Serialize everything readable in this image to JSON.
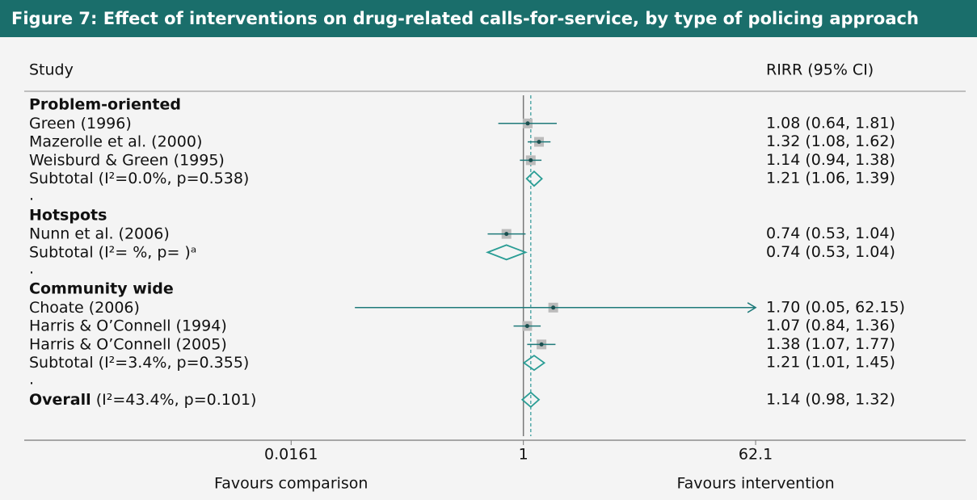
{
  "chart_data": {
    "type": "forest",
    "title": "Figure 7: Effect of interventions on drug-related calls-for-service, by type of policing approach",
    "column_headers": [
      "Study",
      "RIRR (95% CI)"
    ],
    "xlim": [
      0.00014,
      2600
    ],
    "xticks": [
      0.0161,
      1,
      62.1
    ],
    "log_x": true,
    "null_line": 1,
    "x_labels": [
      "Favours comparison",
      "Favours intervention"
    ],
    "color": "#1f7a7a",
    "rows": [
      {
        "kind": "group",
        "label": "Problem-oriented"
      },
      {
        "kind": "study",
        "label": "Green (1996)",
        "estimate": 1.08,
        "lower": 0.64,
        "upper": 1.81,
        "value_label": "1.08 (0.64, 1.81)"
      },
      {
        "kind": "study",
        "label": "Mazerolle et al. (2000)",
        "estimate": 1.32,
        "lower": 1.08,
        "upper": 1.62,
        "value_label": "1.32 (1.08, 1.62)"
      },
      {
        "kind": "study",
        "label": "Weisburd & Green (1995)",
        "estimate": 1.14,
        "lower": 0.94,
        "upper": 1.38,
        "value_label": "1.14 (0.94, 1.38)"
      },
      {
        "kind": "subtotal",
        "label": "Subtotal",
        "note": "(I²=0.0%, p=0.538)",
        "estimate": 1.21,
        "lower": 1.06,
        "upper": 1.39,
        "value_label": "1.21 (1.06, 1.39)"
      },
      {
        "kind": "spacer",
        "label": "."
      },
      {
        "kind": "group",
        "label": "Hotspots"
      },
      {
        "kind": "study",
        "label": "Nunn et al. (2006)",
        "estimate": 0.74,
        "lower": 0.53,
        "upper": 1.04,
        "value_label": "0.74 (0.53, 1.04)"
      },
      {
        "kind": "subtotal",
        "label": "Subtotal",
        "note": "(I²= %, p= )ᵃ",
        "estimate": 0.74,
        "lower": 0.53,
        "upper": 1.04,
        "value_label": "0.74 (0.53, 1.04)"
      },
      {
        "kind": "spacer",
        "label": "."
      },
      {
        "kind": "group",
        "label": "Community wide"
      },
      {
        "kind": "study",
        "label": "Choate (2006)",
        "estimate": 1.7,
        "lower": 0.05,
        "upper": 62.15,
        "value_label": "1.70 (0.05, 62.15)"
      },
      {
        "kind": "study",
        "label": "Harris & O’Connell (1994)",
        "estimate": 1.07,
        "lower": 0.84,
        "upper": 1.36,
        "value_label": "1.07 (0.84, 1.36)"
      },
      {
        "kind": "study",
        "label": "Harris & O’Connell (2005)",
        "estimate": 1.38,
        "lower": 1.07,
        "upper": 1.77,
        "value_label": "1.38 (1.07, 1.77)"
      },
      {
        "kind": "subtotal",
        "label": "Subtotal",
        "note": "(I²=3.4%, p=0.355)",
        "estimate": 1.21,
        "lower": 1.01,
        "upper": 1.45,
        "value_label": "1.21 (1.01, 1.45)"
      },
      {
        "kind": "spacer",
        "label": "."
      },
      {
        "kind": "overall",
        "label": "Overall",
        "note": "(I²=43.4%, p=0.101)",
        "estimate": 1.14,
        "lower": 0.98,
        "upper": 1.32,
        "value_label": "1.14 (0.98, 1.32)"
      }
    ]
  }
}
